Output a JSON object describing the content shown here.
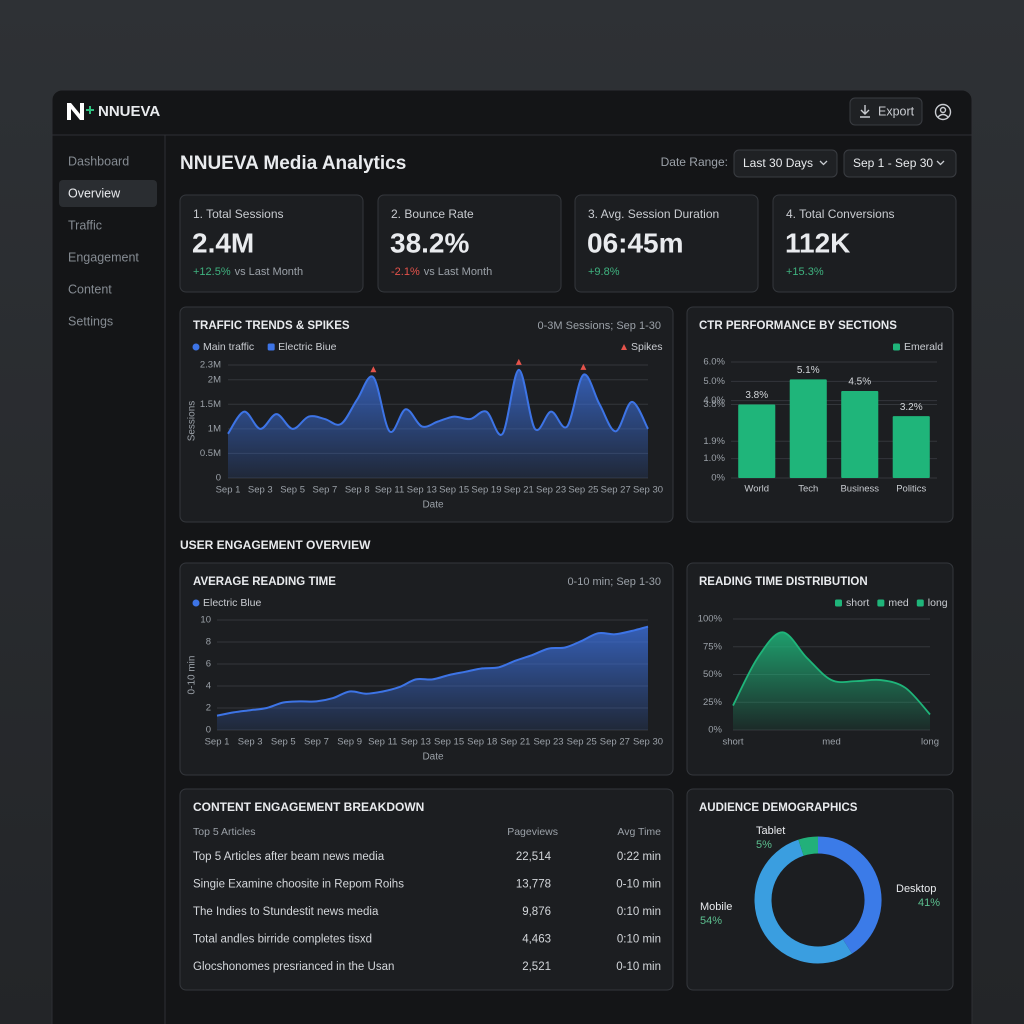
{
  "header": {
    "brand": "NNUEVA",
    "export": "Export"
  },
  "sidebar": {
    "items": [
      "Dashboard",
      "Overview",
      "Traffic",
      "Engagement",
      "Content",
      "Settings"
    ],
    "active": 1
  },
  "page": {
    "title": "NNUEVA Media Analytics",
    "date_range_label": "Date Range:",
    "date_range": "Last 30 Days",
    "date_span": "Sep 1 - Sep 30"
  },
  "kpis": [
    {
      "label": "1. Total Sessions",
      "value": "2.4M",
      "change": "+12.5%",
      "note": "vs Last Month",
      "change_color": "#3fb27f"
    },
    {
      "label": "2. Bounce Rate",
      "value": "38.2%",
      "change": "-2.1%",
      "note": "vs Last Month",
      "change_color": "#e5534b"
    },
    {
      "label": "3. Avg. Session Duration",
      "value": "06:45m",
      "change": "+9.8%",
      "change_color": "#3fb27f"
    },
    {
      "label": "4. Total Conversions",
      "value": "112K",
      "change": "+15.3%",
      "change_color": "#3fb27f"
    }
  ],
  "section_title": "USER ENGAGEMENT OVERVIEW",
  "table": {
    "title": "CONTENT ENGAGEMENT BREAKDOWN",
    "columns": [
      "Top 5 Articles",
      "Pageviews",
      "Avg Time"
    ],
    "rows": [
      [
        "Top 5 Articles after beam news media",
        "22,514",
        "0:22 min"
      ],
      [
        "Singie Examine choosite in Repom Roihs",
        "13,778",
        "0-10 min"
      ],
      [
        "The Indies to Stundestit news media",
        "9,876",
        "0:10 min"
      ],
      [
        "Total andles birride completes tisxd",
        "4,463",
        "0:10 min"
      ],
      [
        "Glocshonomes presrianced in the Usan",
        "2,521",
        "0-10 min"
      ]
    ]
  },
  "chart_data": [
    {
      "type": "line",
      "title": "TRAFFIC TRENDS & SPIKES",
      "subtitle": "0-3M Sessions; Sep 1-30",
      "ylabel": "Sessions",
      "xlabel": "Date",
      "categories": [
        "Sep 1",
        null,
        "Sep 3",
        null,
        "Sep 5",
        null,
        "Sep 7",
        null,
        "Sep 8",
        null,
        "Sep 11",
        null,
        "Sep 13",
        null,
        "Sep 15",
        null,
        "Sep 19",
        null,
        "Sep 21",
        null,
        "Sep 23",
        null,
        "Sep 25",
        null,
        "Sep 27",
        null,
        "Sep 30"
      ],
      "series": [
        {
          "name": "Main traffic",
          "color": "#3d74e6",
          "values": [
            900000,
            1350000,
            1000000,
            1300000,
            1000000,
            1250000,
            1200000,
            1100000,
            1600000,
            2050000,
            950000,
            1400000,
            1050000,
            1150000,
            1250000,
            1200000,
            1350000,
            900000,
            2200000,
            1000000,
            1350000,
            1050000,
            2100000,
            1500000,
            950000,
            1550000,
            1000000
          ]
        },
        {
          "name": "Spikes",
          "color": "#e5534b",
          "marker": "triangle",
          "values": [
            null,
            null,
            null,
            null,
            null,
            null,
            null,
            null,
            null,
            2050000,
            null,
            null,
            null,
            null,
            null,
            null,
            null,
            null,
            2200000,
            null,
            null,
            null,
            2100000,
            null,
            null,
            null,
            null
          ]
        }
      ],
      "color_label": "Electric Biue",
      "ylim": [
        0,
        2300000
      ],
      "yticks": [
        0,
        {
          "value": 500000,
          "label": "0.5M"
        },
        {
          "value": 1000000,
          "label": "1M"
        },
        {
          "value": 1500000,
          "label": "1.5M"
        },
        {
          "value": 2000000,
          "label": "2M"
        },
        {
          "value": 2300000,
          "label": "2.3M"
        }
      ],
      "grid": true
    },
    {
      "type": "bar",
      "title": "CTR PERFORMANCE BY SECTIONS",
      "categories": [
        "World",
        "Tech",
        "Business",
        "Politics"
      ],
      "series": [
        {
          "name": "Emerald",
          "color": "#1fb57a",
          "values": [
            3.8,
            5.1,
            4.5,
            3.2
          ],
          "value_labels": [
            "3.8%",
            "5.1%",
            "4.5%",
            "3.2%"
          ]
        }
      ],
      "ylim": [
        0,
        6
      ],
      "yticks": [
        {
          "value": 0,
          "label": "0%"
        },
        {
          "value": 1,
          "label": "1.0%"
        },
        {
          "value": 1.9,
          "label": "1.9%"
        },
        {
          "value": 3.8,
          "label": "3.8%"
        },
        {
          "value": 4,
          "label": "4.0%"
        },
        {
          "value": 5,
          "label": "5.0%"
        },
        {
          "value": 6,
          "label": "6.0%"
        }
      ],
      "grid": true
    },
    {
      "type": "line",
      "title": "AVERAGE READING TIME",
      "subtitle": "0-10 min; Sep 1-30",
      "ylabel": "0-10 min",
      "xlabel": "Date",
      "categories": [
        "Sep 1",
        null,
        "Sep 3",
        null,
        "Sep 5",
        null,
        "Sep 7",
        null,
        "Sep 9",
        null,
        "Sep 11",
        null,
        "Sep 13",
        null,
        "Sep 15",
        null,
        "Sep 18",
        null,
        "Sep 21",
        null,
        "Sep 23",
        null,
        "Sep 25",
        null,
        "Sep 27",
        null,
        "Sep 30"
      ],
      "series": [
        {
          "name": "Electric Blue",
          "color": "#3d74e6",
          "values": [
            1.3,
            1.6,
            1.8,
            2.0,
            2.5,
            2.6,
            2.6,
            2.9,
            3.5,
            3.3,
            3.5,
            3.9,
            4.6,
            4.6,
            5.0,
            5.3,
            5.6,
            5.7,
            6.3,
            6.8,
            7.4,
            7.5,
            8.1,
            8.8,
            8.7,
            9.0,
            9.4
          ]
        }
      ],
      "ylim": [
        0,
        10
      ],
      "yticks": [
        0,
        2,
        4,
        6,
        8,
        10
      ],
      "grid": true
    },
    {
      "type": "area",
      "title": "READING TIME DISTRIBUTION",
      "categories": [
        "short",
        null,
        null,
        null,
        "med",
        null,
        null,
        null,
        "long"
      ],
      "legend": [
        "short",
        "med",
        "long"
      ],
      "series": [
        {
          "color": "#1fb57a",
          "values": [
            22,
            65,
            88,
            65,
            45,
            44,
            45,
            38,
            14
          ]
        }
      ],
      "ylim": [
        0,
        100
      ],
      "yticks": [
        {
          "value": 0,
          "label": "0%"
        },
        {
          "value": 25,
          "label": "25%"
        },
        {
          "value": 50,
          "label": "50%"
        },
        {
          "value": 75,
          "label": "75%"
        },
        {
          "value": 100,
          "label": "100%"
        }
      ],
      "grid": true
    },
    {
      "type": "pie",
      "title": "AUDIENCE DEMOGRAPHICS",
      "donut": true,
      "categories": [
        "Desktop",
        "Mobile",
        "Tablet"
      ],
      "values": [
        41,
        54,
        5
      ],
      "value_labels": [
        "41%",
        "54%",
        "5%"
      ],
      "colors": [
        "#3b7be8",
        "#3a9ee0",
        "#22b07a"
      ]
    }
  ]
}
